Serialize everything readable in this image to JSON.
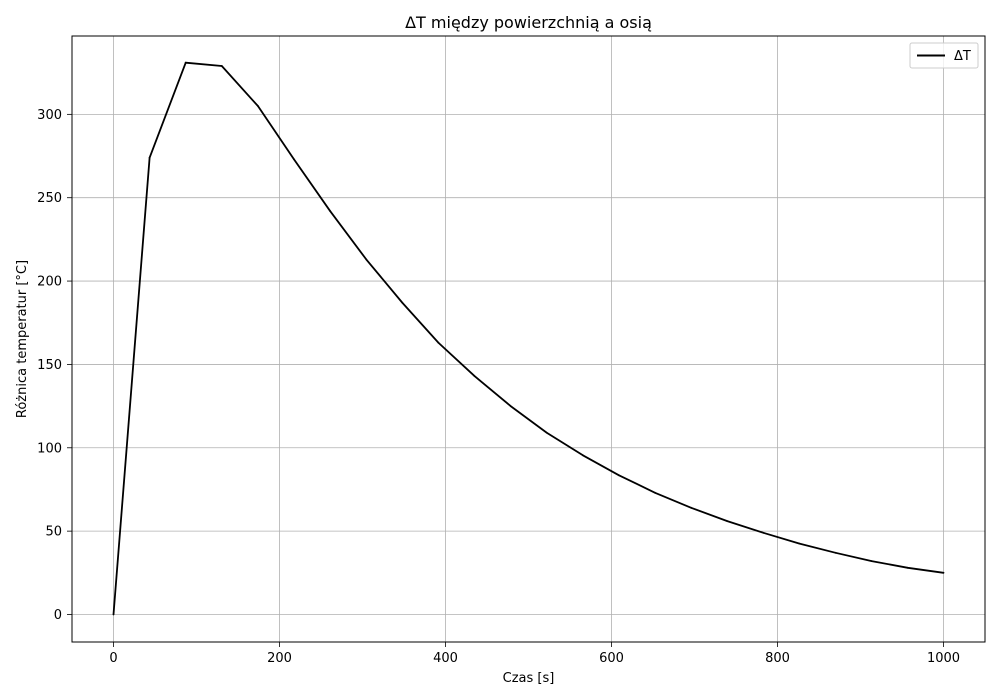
{
  "chart_data": {
    "type": "line",
    "title": "ΔT między powierzchnią a osią",
    "xlabel": "Czas [s]",
    "ylabel": "Różnica temperatur [°C]",
    "xlim": [
      -50,
      1050
    ],
    "ylim": [
      -16.5,
      347
    ],
    "xticks": [
      0,
      200,
      400,
      600,
      800,
      1000
    ],
    "yticks": [
      0,
      50,
      100,
      150,
      200,
      250,
      300
    ],
    "grid": true,
    "legend": {
      "position": "top-right",
      "entries": [
        "ΔT"
      ]
    },
    "series": [
      {
        "name": "ΔT",
        "color": "#000000",
        "x": [
          0,
          43.5,
          87,
          130.5,
          174,
          217.5,
          261,
          304.5,
          348,
          391.5,
          435,
          478.5,
          522,
          565.5,
          609,
          652.5,
          696,
          739.5,
          783,
          826.5,
          870,
          913.5,
          957,
          1000
        ],
        "y": [
          0,
          274,
          331,
          329,
          305,
          273,
          242,
          213,
          187,
          163,
          143,
          125,
          109,
          95.5,
          83.5,
          73,
          64,
          56,
          49,
          42.5,
          37,
          32,
          28,
          25
        ]
      }
    ]
  }
}
